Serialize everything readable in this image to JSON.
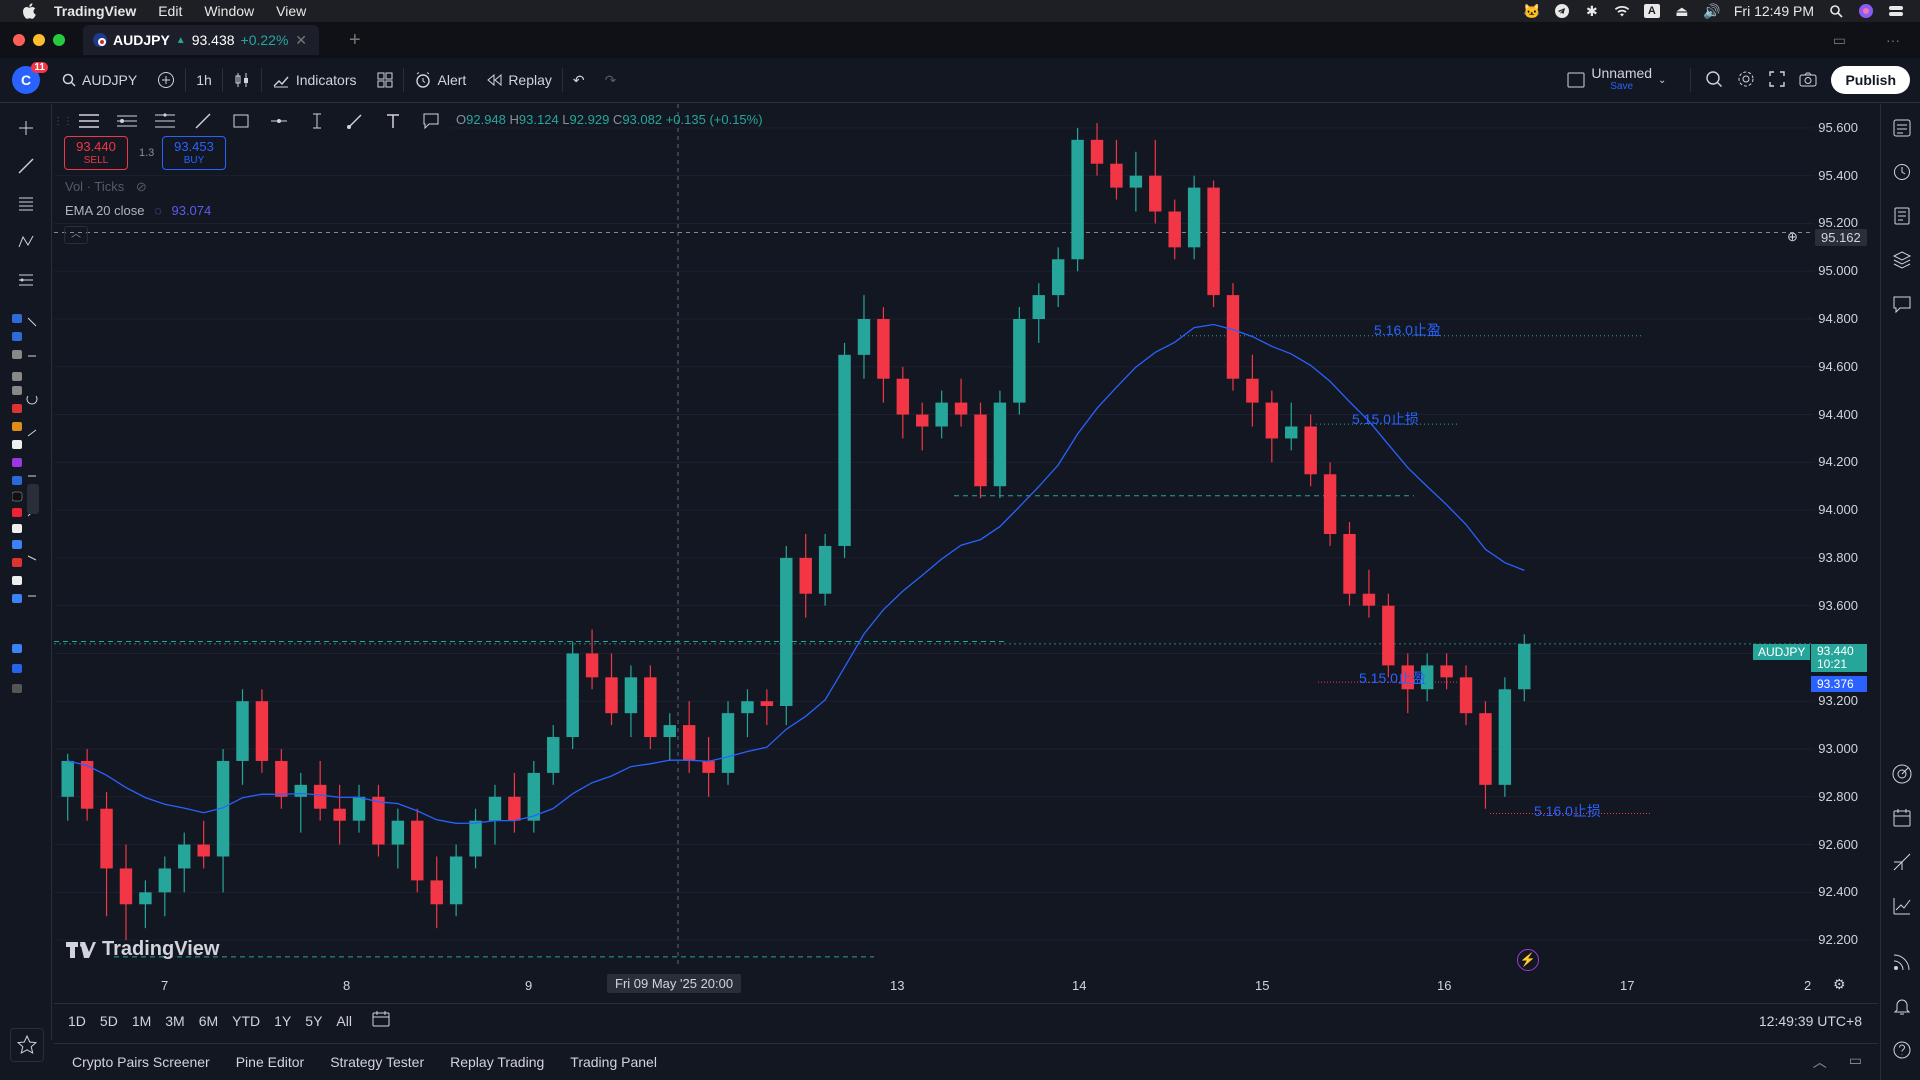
{
  "menubar": {
    "app": "TradingView",
    "items": [
      "Edit",
      "Window",
      "View"
    ],
    "clock": "Fri 12:49 PM"
  },
  "tab": {
    "symbol": "AUDJPY",
    "price": "93.438",
    "change": "+0.22%"
  },
  "toolbar": {
    "notifications": "11",
    "symbol": "AUDJPY",
    "interval": "1h",
    "indicators": "Indicators",
    "alert": "Alert",
    "replay": "Replay",
    "layout_name": "Unnamed",
    "layout_save": "Save",
    "publish": "Publish"
  },
  "legend": {
    "o_label": "O",
    "o": "92.948",
    "h_label": "H",
    "h": "93.124",
    "l_label": "L",
    "l": "92.929",
    "c_label": "C",
    "c": "93.082",
    "change": "+0.135 (+0.15%)"
  },
  "trade": {
    "sell_price": "93.440",
    "sell_label": "SELL",
    "spread": "1.3",
    "buy_price": "93.453",
    "buy_label": "BUY"
  },
  "indicators": {
    "vol": "Vol · Ticks",
    "ema": "EMA 20 close",
    "ema_value": "93.074"
  },
  "price_axis": {
    "ticks": [
      "95.600",
      "95.400",
      "95.200",
      "95.000",
      "94.800",
      "94.600",
      "94.400",
      "94.200",
      "94.000",
      "93.800",
      "93.600",
      "93.400",
      "93.200",
      "93.000",
      "92.800",
      "92.600",
      "92.400",
      "92.200"
    ],
    "cursor_price": "95.162",
    "current_symbol": "AUDJPY",
    "current_price": "93.440",
    "countdown": "10:21",
    "ema_price": "93.376"
  },
  "time_axis": {
    "ticks": [
      "7",
      "8",
      "9",
      "13",
      "14",
      "15",
      "16",
      "17",
      "2"
    ],
    "cursor_time": "Fri 09 May '25   20:00"
  },
  "annotations": [
    "5.16.0止盈",
    "5.15.0止损",
    "5.15.0止盈",
    "5.16.0止损"
  ],
  "watermark": "TradingView",
  "ranges": [
    "1D",
    "5D",
    "1M",
    "3M",
    "6M",
    "YTD",
    "1Y",
    "5Y",
    "All"
  ],
  "clock_tz": "12:49:39 UTC+8",
  "bottom_tabs": [
    "Crypto Pairs Screener",
    "Pine Editor",
    "Strategy Tester",
    "Replay Trading",
    "Trading Panel"
  ],
  "colors": {
    "bg": "#131722",
    "up": "#26a69a",
    "down": "#f23645",
    "ema": "#2962ff",
    "accent": "#2962ff"
  },
  "chart_data": {
    "type": "candlestick",
    "symbol": "AUDJPY",
    "interval": "1h",
    "ylim": [
      92.1,
      95.7
    ],
    "x_ticks": [
      "7",
      "8",
      "9",
      "13",
      "14",
      "15",
      "16",
      "17"
    ],
    "candles": [
      [
        92.8,
        92.98,
        92.7,
        92.95
      ],
      [
        92.95,
        93.0,
        92.7,
        92.75
      ],
      [
        92.75,
        92.82,
        92.3,
        92.5
      ],
      [
        92.5,
        92.6,
        92.2,
        92.35
      ],
      [
        92.35,
        92.45,
        92.25,
        92.4
      ],
      [
        92.4,
        92.55,
        92.3,
        92.5
      ],
      [
        92.5,
        92.65,
        92.4,
        92.6
      ],
      [
        92.6,
        92.7,
        92.5,
        92.55
      ],
      [
        92.55,
        93.0,
        92.4,
        92.95
      ],
      [
        92.95,
        93.25,
        92.85,
        93.2
      ],
      [
        93.2,
        93.25,
        92.9,
        92.95
      ],
      [
        92.95,
        93.0,
        92.75,
        92.8
      ],
      [
        92.8,
        92.9,
        92.65,
        92.85
      ],
      [
        92.85,
        92.95,
        92.7,
        92.75
      ],
      [
        92.75,
        92.85,
        92.6,
        92.7
      ],
      [
        92.7,
        92.85,
        92.65,
        92.8
      ],
      [
        92.8,
        92.85,
        92.55,
        92.6
      ],
      [
        92.6,
        92.75,
        92.5,
        92.7
      ],
      [
        92.7,
        92.75,
        92.4,
        92.45
      ],
      [
        92.45,
        92.55,
        92.25,
        92.35
      ],
      [
        92.35,
        92.6,
        92.3,
        92.55
      ],
      [
        92.55,
        92.75,
        92.5,
        92.7
      ],
      [
        92.7,
        92.85,
        92.6,
        92.8
      ],
      [
        92.8,
        92.9,
        92.65,
        92.7
      ],
      [
        92.7,
        92.95,
        92.65,
        92.9
      ],
      [
        92.9,
        93.1,
        92.85,
        93.05
      ],
      [
        93.05,
        93.45,
        93.0,
        93.4
      ],
      [
        93.4,
        93.5,
        93.25,
        93.3
      ],
      [
        93.3,
        93.4,
        93.1,
        93.15
      ],
      [
        93.15,
        93.35,
        93.05,
        93.3
      ],
      [
        93.3,
        93.35,
        93.0,
        93.05
      ],
      [
        93.05,
        93.15,
        92.95,
        93.1
      ],
      [
        93.1,
        93.2,
        92.9,
        92.95
      ],
      [
        92.95,
        93.05,
        92.8,
        92.9
      ],
      [
        92.9,
        93.2,
        92.85,
        93.15
      ],
      [
        93.15,
        93.25,
        93.05,
        93.2
      ],
      [
        93.2,
        93.25,
        93.1,
        93.18
      ],
      [
        93.18,
        93.85,
        93.1,
        93.8
      ],
      [
        93.8,
        93.9,
        93.55,
        93.65
      ],
      [
        93.65,
        93.9,
        93.6,
        93.85
      ],
      [
        93.85,
        94.7,
        93.8,
        94.65
      ],
      [
        94.65,
        94.9,
        94.55,
        94.8
      ],
      [
        94.8,
        94.85,
        94.45,
        94.55
      ],
      [
        94.55,
        94.6,
        94.3,
        94.4
      ],
      [
        94.4,
        94.45,
        94.25,
        94.35
      ],
      [
        94.35,
        94.5,
        94.3,
        94.45
      ],
      [
        94.45,
        94.55,
        94.35,
        94.4
      ],
      [
        94.4,
        94.45,
        94.05,
        94.1
      ],
      [
        94.1,
        94.5,
        94.05,
        94.45
      ],
      [
        94.45,
        94.85,
        94.4,
        94.8
      ],
      [
        94.8,
        94.95,
        94.7,
        94.9
      ],
      [
        94.9,
        95.1,
        94.85,
        95.05
      ],
      [
        95.05,
        95.6,
        95.0,
        95.55
      ],
      [
        95.55,
        95.62,
        95.4,
        95.45
      ],
      [
        95.45,
        95.55,
        95.3,
        95.35
      ],
      [
        95.35,
        95.5,
        95.25,
        95.4
      ],
      [
        95.4,
        95.55,
        95.2,
        95.25
      ],
      [
        95.25,
        95.3,
        95.05,
        95.1
      ],
      [
        95.1,
        95.4,
        95.05,
        95.35
      ],
      [
        95.35,
        95.38,
        94.85,
        94.9
      ],
      [
        94.9,
        94.95,
        94.5,
        94.55
      ],
      [
        94.55,
        94.65,
        94.35,
        94.45
      ],
      [
        94.45,
        94.5,
        94.2,
        94.3
      ],
      [
        94.3,
        94.45,
        94.25,
        94.35
      ],
      [
        94.35,
        94.4,
        94.1,
        94.15
      ],
      [
        94.15,
        94.2,
        93.85,
        93.9
      ],
      [
        93.9,
        93.95,
        93.6,
        93.65
      ],
      [
        93.65,
        93.75,
        93.55,
        93.6
      ],
      [
        93.6,
        93.65,
        93.3,
        93.35
      ],
      [
        93.35,
        93.4,
        93.15,
        93.25
      ],
      [
        93.25,
        93.4,
        93.2,
        93.35
      ],
      [
        93.35,
        93.4,
        93.25,
        93.3
      ],
      [
        93.3,
        93.35,
        93.1,
        93.15
      ],
      [
        93.15,
        93.2,
        92.75,
        92.85
      ],
      [
        92.85,
        93.3,
        92.8,
        93.25
      ],
      [
        93.25,
        93.48,
        93.2,
        93.44
      ]
    ]
  }
}
